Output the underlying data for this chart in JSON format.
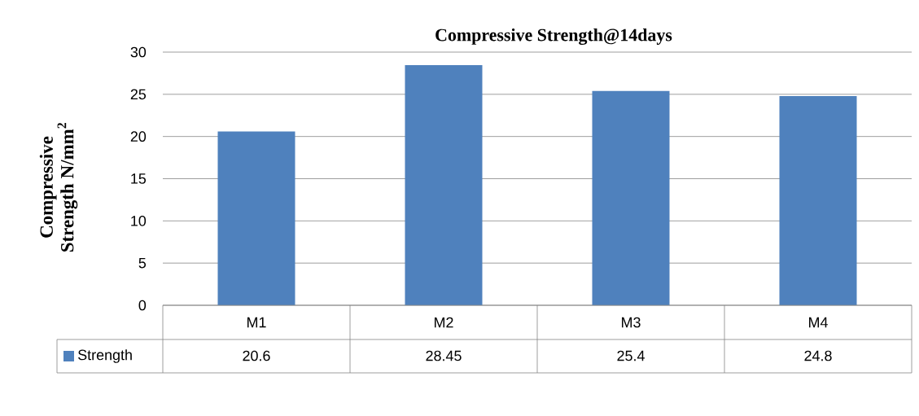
{
  "chart_data": {
    "type": "bar",
    "title": "Compressive Strength@14days",
    "ylabel": "Compressive Strength N/mm$^{2}$",
    "categories": [
      "M1",
      "M2",
      "M3",
      "M4"
    ],
    "series": [
      {
        "name": "Strength",
        "color": "#4f81bd",
        "values": [
          20.6,
          28.45,
          25.4,
          24.8
        ]
      }
    ],
    "ylim": [
      0,
      30
    ],
    "yticks": [
      0,
      5,
      10,
      15,
      20,
      25,
      30
    ],
    "grid": "y",
    "legend": "bottom",
    "data_labels": true
  }
}
